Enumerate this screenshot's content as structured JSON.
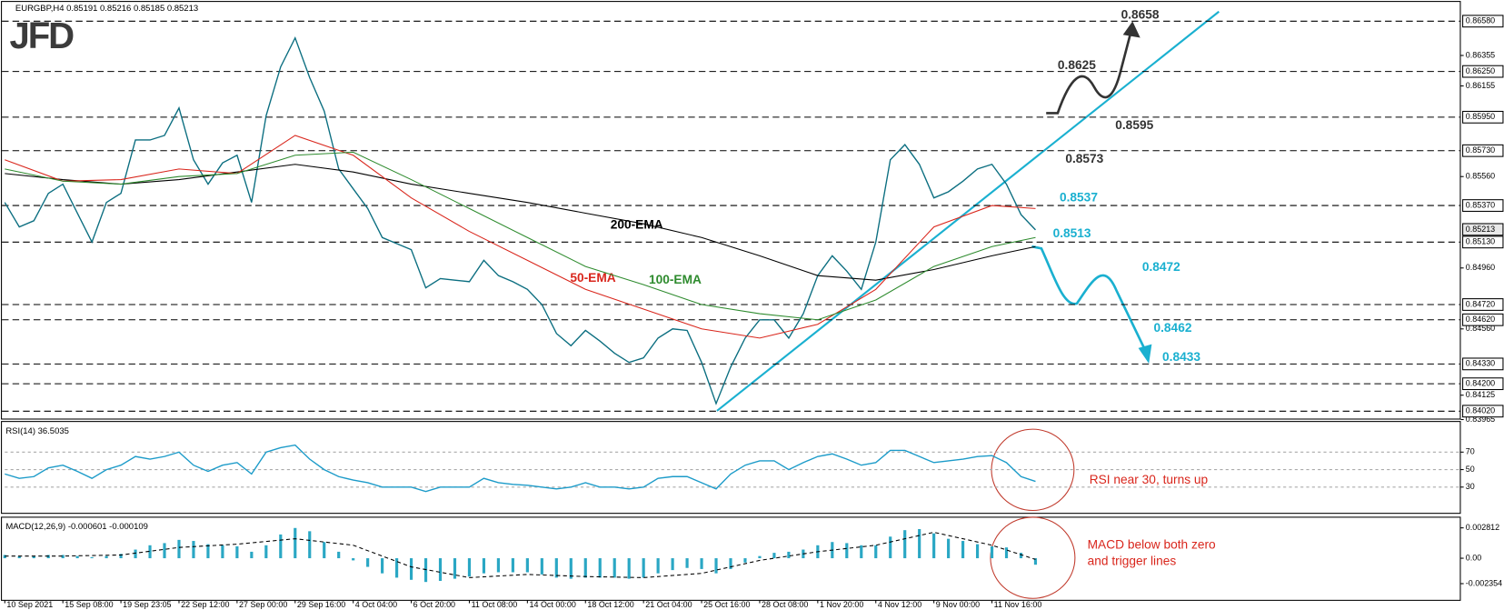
{
  "header": {
    "logo": "JFD"
  },
  "chart_data": [
    {
      "type": "line",
      "title": "EURGBP,H4  0.85191 0.85216 0.85185 0.85213",
      "xlim": [
        0,
        100
      ],
      "ylim": [
        0.83965,
        0.867
      ],
      "x": [
        0,
        1,
        2,
        3,
        4,
        5,
        6,
        7,
        8,
        9,
        10,
        11,
        12,
        13,
        14,
        15,
        16,
        17,
        18,
        19,
        20,
        21,
        22,
        23,
        24,
        25,
        26,
        27,
        28,
        29,
        30,
        31,
        32,
        33,
        34,
        35,
        36,
        37,
        38,
        39,
        40,
        41,
        42,
        43,
        44,
        45,
        46,
        47,
        48,
        49,
        50,
        51,
        52,
        53,
        54,
        55,
        56,
        57,
        58,
        59,
        60,
        61,
        62,
        63,
        64,
        65,
        66,
        67,
        68,
        69,
        70,
        71
      ],
      "xticks": [
        {
          "value": 0,
          "label": "10 Sep 2021"
        },
        {
          "value": 4,
          "label": "15 Sep 08:00"
        },
        {
          "value": 8,
          "label": "19 Sep 23:05"
        },
        {
          "value": 12,
          "label": "22 Sep 12:00"
        },
        {
          "value": 16,
          "label": "27 Sep 00:00"
        },
        {
          "value": 20,
          "label": "29 Sep 16:00"
        },
        {
          "value": 24,
          "label": "4 Oct 04:00"
        },
        {
          "value": 28,
          "label": "6 Oct 20:00"
        },
        {
          "value": 32,
          "label": "11 Oct 08:00"
        },
        {
          "value": 36,
          "label": "14 Oct 00:00"
        },
        {
          "value": 40,
          "label": "18 Oct 12:00"
        },
        {
          "value": 44,
          "label": "21 Oct 04:00"
        },
        {
          "value": 48,
          "label": "25 Oct 16:00"
        },
        {
          "value": 52,
          "label": "28 Oct 08:00"
        },
        {
          "value": 56,
          "label": "1 Nov 20:00"
        },
        {
          "value": 60,
          "label": "4 Nov 12:00"
        },
        {
          "value": 64,
          "label": "9 Nov 00:00"
        },
        {
          "value": 68,
          "label": "11 Nov 16:00"
        }
      ],
      "yticks": [
        0.86355,
        0.86155,
        {
          "value": 0.8556,
          "label": "0.85560"
        },
        {
          "value": 0.8496,
          "label": "0.84960"
        },
        {
          "value": 0.8456,
          "label": "0.84560"
        },
        0.84125,
        0.83965
      ],
      "levels": [
        {
          "value": 0.8658,
          "label": "0.86580"
        },
        {
          "value": 0.8625,
          "label": "0.86250"
        },
        {
          "value": 0.8595,
          "label": "0.85950"
        },
        {
          "value": 0.8573,
          "label": "0.85730"
        },
        {
          "value": 0.8537,
          "label": "0.85370"
        },
        {
          "value": 0.8513,
          "label": "0.85130"
        },
        {
          "value": 0.8472,
          "label": "0.84720"
        },
        {
          "value": 0.8462,
          "label": "0.84620"
        },
        {
          "value": 0.8433,
          "label": "0.84330"
        },
        {
          "value": 0.842,
          "label": "0.84200"
        },
        {
          "value": 0.8402,
          "label": "0.84020"
        }
      ],
      "last_price": 0.85213,
      "series": [
        {
          "color": "#0b6e80",
          "values": [
            0.8539,
            0.8523,
            0.8527,
            0.8545,
            0.8551,
            0.8532,
            0.8513,
            0.8539,
            0.8545,
            0.858,
            0.858,
            0.8583,
            0.8601,
            0.8567,
            0.8551,
            0.8565,
            0.857,
            0.8539,
            0.8596,
            0.8628,
            0.8647,
            0.8621,
            0.8599,
            0.8561,
            0.8548,
            0.8535,
            0.8516,
            0.8512,
            0.8508,
            0.8483,
            0.8489,
            0.8488,
            0.8487,
            0.8501,
            0.8491,
            0.8487,
            0.8482,
            0.8472,
            0.8453,
            0.8445,
            0.8455,
            0.8448,
            0.844,
            0.8434,
            0.8437,
            0.845,
            0.8456,
            0.8455,
            0.8434,
            0.8407,
            0.8431,
            0.845,
            0.8462,
            0.8462,
            0.845,
            0.8466,
            0.8491,
            0.8504,
            0.8494,
            0.8482,
            0.8513,
            0.8567,
            0.8577,
            0.8564,
            0.8542,
            0.8546,
            0.8553,
            0.8561,
            0.8564,
            0.8551,
            0.8531,
            0.8521
          ]
        },
        {
          "name": "200-EMA",
          "color": "#000000",
          "x": [
            0,
            4,
            8,
            12,
            16,
            20,
            24,
            28,
            32,
            36,
            40,
            44,
            48,
            52,
            56,
            60,
            64,
            68,
            71
          ],
          "values": [
            0.8558,
            0.8554,
            0.8551,
            0.8554,
            0.8559,
            0.8564,
            0.8559,
            0.8551,
            0.8545,
            0.8539,
            0.8532,
            0.8525,
            0.8516,
            0.8504,
            0.8491,
            0.8488,
            0.8495,
            0.8504,
            0.851
          ]
        },
        {
          "name": "50-EMA",
          "color": "#d9261c",
          "x": [
            0,
            4,
            8,
            12,
            16,
            20,
            24,
            28,
            32,
            36,
            40,
            44,
            48,
            52,
            56,
            60,
            64,
            68,
            71
          ],
          "values": [
            0.8567,
            0.8553,
            0.8554,
            0.8561,
            0.8558,
            0.8583,
            0.857,
            0.8542,
            0.852,
            0.8501,
            0.8482,
            0.8469,
            0.8456,
            0.845,
            0.8459,
            0.8482,
            0.8523,
            0.8537,
            0.8535
          ]
        },
        {
          "name": "100-EMA",
          "color": "#2e8b2e",
          "x": [
            0,
            4,
            8,
            12,
            16,
            20,
            24,
            28,
            32,
            36,
            40,
            44,
            48,
            52,
            56,
            60,
            64,
            68,
            71
          ],
          "values": [
            0.8561,
            0.8553,
            0.8551,
            0.8556,
            0.8558,
            0.857,
            0.8572,
            0.8554,
            0.8535,
            0.8516,
            0.8497,
            0.8485,
            0.8472,
            0.8466,
            0.8462,
            0.8475,
            0.8497,
            0.851,
            0.8516
          ]
        }
      ],
      "annotations": [
        {
          "text": "0.8658",
          "color": "#333333"
        },
        {
          "text": "0.8625",
          "color": "#333333"
        },
        {
          "text": "0.8595",
          "color": "#333333"
        },
        {
          "text": "0.8573",
          "color": "#333333"
        },
        {
          "text": "0.8537",
          "color": "#1ab0d0"
        },
        {
          "text": "0.8513",
          "color": "#1ab0d0"
        },
        {
          "text": "0.8472",
          "color": "#1ab0d0"
        },
        {
          "text": "0.8462",
          "color": "#1ab0d0"
        },
        {
          "text": "0.8433",
          "color": "#1ab0d0"
        }
      ]
    },
    {
      "type": "line",
      "title": "RSI(14) 36.5035",
      "xlim": [
        0,
        100
      ],
      "ylim": [
        0,
        105
      ],
      "yticks": [
        30,
        50,
        70
      ],
      "x": [
        0,
        1,
        2,
        3,
        4,
        5,
        6,
        7,
        8,
        9,
        10,
        11,
        12,
        13,
        14,
        15,
        16,
        17,
        18,
        19,
        20,
        21,
        22,
        23,
        24,
        25,
        26,
        27,
        28,
        29,
        30,
        31,
        32,
        33,
        34,
        35,
        36,
        37,
        38,
        39,
        40,
        41,
        42,
        43,
        44,
        45,
        46,
        47,
        48,
        49,
        50,
        51,
        52,
        53,
        54,
        55,
        56,
        57,
        58,
        59,
        60,
        61,
        62,
        63,
        64,
        65,
        66,
        67,
        68,
        69,
        70,
        71
      ],
      "series": [
        {
          "color": "#1c9bc9",
          "values": [
            45,
            40,
            42,
            52,
            55,
            48,
            40,
            50,
            55,
            65,
            62,
            65,
            70,
            55,
            48,
            55,
            58,
            45,
            70,
            75,
            78,
            62,
            50,
            42,
            38,
            35,
            30,
            30,
            30,
            25,
            30,
            30,
            30,
            40,
            35,
            33,
            32,
            30,
            28,
            30,
            35,
            30,
            30,
            28,
            30,
            40,
            42,
            42,
            35,
            28,
            45,
            55,
            60,
            60,
            50,
            58,
            65,
            68,
            62,
            55,
            58,
            72,
            72,
            65,
            58,
            60,
            62,
            65,
            66,
            58,
            42,
            36.5
          ]
        }
      ],
      "annotations": [
        {
          "text": "RSI near 30, turns up",
          "color": "#d9261c"
        }
      ]
    },
    {
      "type": "bar",
      "title": "MACD(12,26,9) -0.000601 -0.000109",
      "xlim": [
        0,
        100
      ],
      "ylim": [
        -0.0039,
        0.0038
      ],
      "yticks": [
        0.002812,
        {
          "value": 0,
          "label": "0.00"
        },
        -0.002354
      ],
      "x": [
        0,
        1,
        2,
        3,
        4,
        5,
        6,
        7,
        8,
        9,
        10,
        11,
        12,
        13,
        14,
        15,
        16,
        17,
        18,
        19,
        20,
        21,
        22,
        23,
        24,
        25,
        26,
        27,
        28,
        29,
        30,
        31,
        32,
        33,
        34,
        35,
        36,
        37,
        38,
        39,
        40,
        41,
        42,
        43,
        44,
        45,
        46,
        47,
        48,
        49,
        50,
        51,
        52,
        53,
        54,
        55,
        56,
        57,
        58,
        59,
        60,
        61,
        62,
        63,
        64,
        65,
        66,
        67,
        68,
        69,
        70,
        71
      ],
      "series": [
        {
          "style": "bar",
          "color": "#2aa7c4",
          "values": [
            0.0003,
            0.0002,
            0.0002,
            0.0003,
            0.0003,
            0.0002,
            0.0001,
            0.0002,
            0.0004,
            0.0008,
            0.0012,
            0.0014,
            0.0017,
            0.0016,
            0.0013,
            0.0012,
            0.0011,
            0.0006,
            0.0012,
            0.0022,
            0.0028,
            0.0025,
            0.0015,
            0.0006,
            -0.0002,
            -0.0008,
            -0.0014,
            -0.0018,
            -0.002,
            -0.0022,
            -0.0021,
            -0.0019,
            -0.0017,
            -0.0014,
            -0.0013,
            -0.0013,
            -0.0013,
            -0.0015,
            -0.0018,
            -0.0019,
            -0.0018,
            -0.0018,
            -0.0018,
            -0.0019,
            -0.0018,
            -0.0014,
            -0.0011,
            -0.0009,
            -0.001,
            -0.0014,
            -0.001,
            -0.0004,
            0.0002,
            0.0005,
            0.0006,
            0.0008,
            0.0012,
            0.0015,
            0.0014,
            0.0012,
            0.0012,
            0.002,
            0.0026,
            0.0027,
            0.0023,
            0.0018,
            0.0016,
            0.0013,
            0.0011,
            0.001,
            0.0005,
            -0.000601
          ]
        },
        {
          "style": "dashed",
          "color": "#000000",
          "x": [
            0,
            4,
            8,
            12,
            16,
            20,
            24,
            28,
            32,
            36,
            40,
            44,
            48,
            52,
            56,
            60,
            64,
            68,
            71
          ],
          "values": [
            0.0002,
            0.0002,
            0.0003,
            0.001,
            0.0013,
            0.0018,
            0.0012,
            -0.0008,
            -0.0018,
            -0.0015,
            -0.0017,
            -0.0018,
            -0.0014,
            -0.0002,
            0.0006,
            0.0012,
            0.0024,
            0.0012,
            -0.000109
          ]
        }
      ],
      "annotations": [
        {
          "text": "MACD below both zero",
          "color": "#d9261c"
        },
        {
          "text": "and trigger lines",
          "color": "#d9261c"
        }
      ]
    }
  ]
}
